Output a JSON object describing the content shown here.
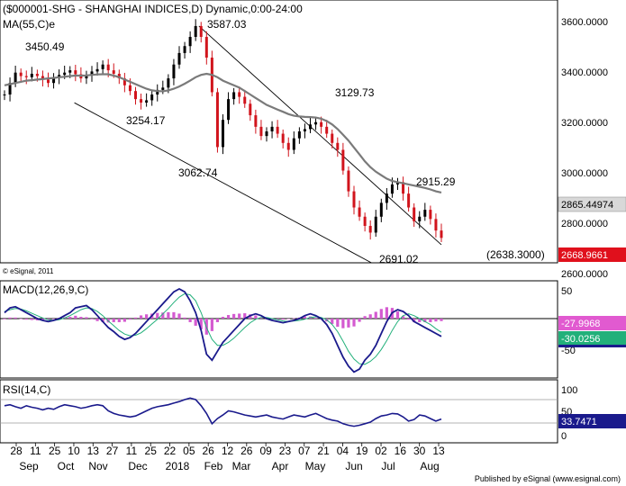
{
  "chart_data": {
    "type": "candlestick",
    "title": "($000001-SHG - SHANGHAI INDICES,D) Dynamic,0:00-24:00",
    "ma_label": "MA(55,C)e",
    "copyright": "© eSignal, 2011",
    "publisher": "Published by eSignal (www.esignal.com)",
    "x_ticks": [
      "28",
      "11",
      "25",
      "10",
      "13",
      "27",
      "11",
      "25",
      "22",
      "05",
      "26",
      "12",
      "26",
      "09",
      "23",
      "07",
      "21",
      "04",
      "19",
      "02",
      "16",
      "30",
      "13"
    ],
    "x_months": [
      "Sep",
      "Oct",
      "Nov",
      "Dec",
      "2018",
      "Feb",
      "Mar",
      "Apr",
      "May",
      "Jun",
      "Jul",
      "Aug"
    ],
    "price_panel": {
      "ylim": [
        2560,
        3700
      ],
      "y_ticks": [
        "3600.0000",
        "3400.0000",
        "3200.0000",
        "3000.0000",
        "2800.0000",
        "2600.0000"
      ],
      "ma_value": "2865.44974",
      "last_price": "2668.9661",
      "annotations": [
        "3587.03",
        "3450.49",
        "3254.17",
        "3062.74",
        "3129.73",
        "2915.29",
        "2691.02",
        "(2638.3000)"
      ],
      "close_series": [
        3290,
        3340,
        3385,
        3370,
        3365,
        3380,
        3370,
        3355,
        3340,
        3365,
        3375,
        3385,
        3395,
        3378,
        3360,
        3375,
        3390,
        3400,
        3420,
        3395,
        3380,
        3360,
        3330,
        3305,
        3270,
        3255,
        3265,
        3290,
        3310,
        3320,
        3360,
        3420,
        3470,
        3500,
        3540,
        3587,
        3540,
        3450,
        3300,
        3062,
        3180,
        3270,
        3300,
        3280,
        3250,
        3200,
        3150,
        3110,
        3130,
        3150,
        3120,
        3080,
        3050,
        3100,
        3130,
        3140,
        3160,
        3170,
        3150,
        3120,
        3080,
        3050,
        2960,
        2870,
        2800,
        2760,
        2720,
        2691,
        2760,
        2820,
        2860,
        2900,
        2910,
        2860,
        2800,
        2740,
        2760,
        2790,
        2750,
        2700,
        2668
      ],
      "ma_series": [
        3330,
        3335,
        3340,
        3345,
        3350,
        3352,
        3355,
        3357,
        3360,
        3362,
        3365,
        3367,
        3370,
        3372,
        3372,
        3373,
        3375,
        3377,
        3378,
        3378,
        3372,
        3365,
        3355,
        3345,
        3335,
        3325,
        3315,
        3308,
        3305,
        3304,
        3308,
        3315,
        3325,
        3337,
        3350,
        3365,
        3375,
        3380,
        3375,
        3365,
        3350,
        3340,
        3330,
        3320,
        3305,
        3290,
        3275,
        3260,
        3245,
        3235,
        3225,
        3215,
        3205,
        3198,
        3195,
        3193,
        3192,
        3190,
        3185,
        3175,
        3160,
        3140,
        3115,
        3090,
        3060,
        3030,
        3000,
        2975,
        2955,
        2940,
        2925,
        2915,
        2910,
        2905,
        2900,
        2895,
        2890,
        2885,
        2878,
        2870,
        2865
      ],
      "channel_upper": [
        [
          3587.03,
          0.445
        ],
        [
          2638.3,
          1.0
        ]
      ],
      "channel_lower": [
        [
          3254.17,
          0.16
        ],
        [
          2560,
          0.84
        ]
      ]
    },
    "macd_panel": {
      "label": "MACD(12,26,9,C)",
      "y_ticks": [
        "50",
        "0",
        "-50"
      ],
      "value_upper": "-27.9968",
      "value_lower": "-30.0256",
      "macd_series": [
        10,
        18,
        20,
        15,
        10,
        5,
        0,
        -3,
        -5,
        -3,
        0,
        5,
        10,
        18,
        20,
        22,
        15,
        5,
        -5,
        -15,
        -22,
        -30,
        -35,
        -32,
        -25,
        -15,
        -5,
        5,
        15,
        25,
        35,
        45,
        50,
        45,
        30,
        10,
        -20,
        -60,
        -70,
        -55,
        -40,
        -30,
        -20,
        -10,
        0,
        5,
        8,
        5,
        0,
        -3,
        -5,
        -7,
        -5,
        -3,
        0,
        5,
        8,
        5,
        0,
        -10,
        -25,
        -45,
        -65,
        -80,
        -90,
        -85,
        -70,
        -60,
        -45,
        -25,
        -5,
        10,
        15,
        12,
        5,
        -5,
        -10,
        -15,
        -20,
        -25,
        -30
      ],
      "signal_series": [
        12,
        15,
        17,
        16,
        13,
        9,
        5,
        1,
        -2,
        -3,
        -2,
        1,
        5,
        10,
        15,
        18,
        17,
        12,
        5,
        -4,
        -12,
        -20,
        -26,
        -29,
        -28,
        -24,
        -17,
        -9,
        -1,
        8,
        17,
        27,
        36,
        42,
        40,
        30,
        10,
        -15,
        -35,
        -45,
        -45,
        -40,
        -33,
        -24,
        -15,
        -7,
        -1,
        2,
        2,
        0,
        -2,
        -4,
        -5,
        -4,
        -3,
        -1,
        2,
        3,
        2,
        -2,
        -10,
        -22,
        -38,
        -55,
        -68,
        -76,
        -77,
        -72,
        -64,
        -52,
        -37,
        -20,
        -5,
        5,
        8,
        5,
        0,
        -5,
        -10,
        -17,
        -23
      ],
      "histogram": [
        -2,
        3,
        3,
        -1,
        -3,
        -4,
        -5,
        -4,
        -3,
        0,
        2,
        4,
        5,
        8,
        5,
        4,
        -2,
        -7,
        -10,
        -11,
        -10,
        -10,
        -9,
        -3,
        3,
        9,
        12,
        14,
        16,
        17,
        18,
        18,
        14,
        3,
        -10,
        -20,
        -30,
        -45,
        -35,
        -10,
        5,
        10,
        13,
        14,
        15,
        12,
        9,
        3,
        -2,
        -3,
        -3,
        -3,
        0,
        1,
        3,
        6,
        6,
        2,
        -2,
        -8,
        -15,
        -23,
        -27,
        -25,
        -22,
        -9,
        7,
        12,
        19,
        27,
        32,
        30,
        20,
        7,
        -3,
        -10,
        -10,
        -10,
        -10,
        -8,
        -7
      ]
    },
    "rsi_panel": {
      "label": "RSI(14,C)",
      "y_ticks": [
        "100",
        "50",
        "0"
      ],
      "value": "33.7471",
      "rsi_series": [
        60,
        62,
        58,
        55,
        60,
        57,
        55,
        52,
        55,
        53,
        58,
        62,
        60,
        58,
        55,
        57,
        60,
        62,
        60,
        50,
        45,
        42,
        40,
        38,
        40,
        45,
        50,
        55,
        58,
        60,
        62,
        65,
        68,
        72,
        75,
        72,
        60,
        45,
        25,
        35,
        42,
        50,
        48,
        45,
        42,
        40,
        38,
        40,
        42,
        38,
        36,
        34,
        38,
        42,
        40,
        38,
        42,
        45,
        40,
        35,
        32,
        30,
        25,
        22,
        20,
        22,
        25,
        28,
        35,
        40,
        42,
        45,
        44,
        38,
        30,
        33,
        42,
        40,
        35,
        30,
        34
      ]
    }
  }
}
